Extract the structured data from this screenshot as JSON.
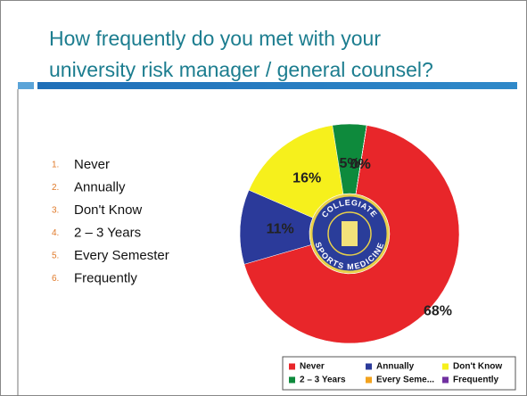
{
  "chart_data": {
    "type": "donut",
    "title": [
      "How frequently do you met with your",
      "university risk manager / general counsel?"
    ],
    "list_numbers": [
      "1.",
      "2.",
      "3.",
      "4.",
      "5.",
      "6."
    ],
    "list_items": [
      "Never",
      "Annually",
      "Don't Know",
      "2 – 3 Years",
      "Every Semester",
      "Frequently"
    ],
    "logo_text": [
      "COLLEGIATE",
      "SPORTS MEDICINE"
    ],
    "legend": "bottom-right",
    "series": [
      {
        "name": "Never",
        "color": "#e8262a",
        "values": [
          68
        ],
        "value_labels": [
          "68%"
        ]
      },
      {
        "name": "Annually",
        "color": "#2b3a9a",
        "values": [
          11
        ],
        "value_labels": [
          "11%"
        ]
      },
      {
        "name": "Don't Know",
        "color": "#f6f01c",
        "values": [
          16
        ],
        "value_labels": [
          "16%"
        ]
      },
      {
        "name": "2 – 3 Years",
        "color": "#0e8a3c",
        "values": [
          5
        ],
        "value_labels": [
          "5%"
        ]
      },
      {
        "name": "Every Seme...",
        "color": "#f2a21e",
        "values": [
          0
        ],
        "value_labels": [
          "0%"
        ]
      },
      {
        "name": "Frequently",
        "color": "#7030a0",
        "values": [
          0
        ],
        "value_labels": [
          "0%"
        ]
      }
    ]
  }
}
